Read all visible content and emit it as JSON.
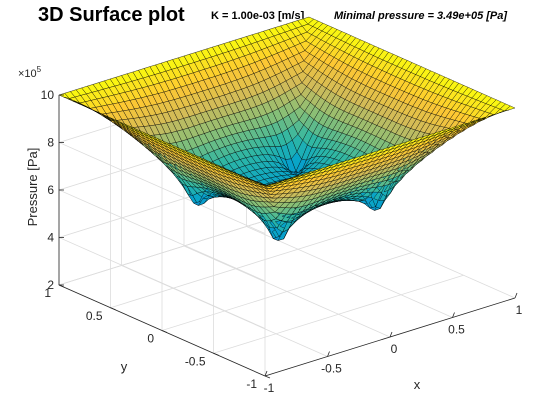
{
  "title": {
    "main": "3D Surface plot",
    "param": "K = 1.00e-03 [m/s]",
    "minimal": "Minimal pressure = 3.49e+05 [Pa]"
  },
  "chart_data": {
    "type": "surface",
    "title": "3D Surface plot",
    "xlabel": "x",
    "ylabel": "y",
    "zlabel": "Pressure [Pa]",
    "z_exponent_label": "×10",
    "z_exponent_power": "5",
    "xlim": [
      -1,
      1
    ],
    "ylim": [
      -1,
      1
    ],
    "zlim": [
      200000,
      1000000
    ],
    "x_ticks": [
      -1,
      -0.5,
      0,
      0.5,
      1
    ],
    "x_tick_labels": [
      "-1",
      "-0.5",
      "0",
      "0.5",
      "1"
    ],
    "y_ticks": [
      -1,
      -0.5,
      0,
      0.5,
      1
    ],
    "y_tick_labels": [
      "-1",
      "-0.5",
      "0",
      "0.5",
      "1"
    ],
    "z_ticks": [
      200000,
      400000,
      600000,
      800000,
      1000000
    ],
    "z_tick_labels": [
      "2",
      "4",
      "6",
      "8",
      "10"
    ],
    "boundary_pressure": 1000000,
    "minimal_pressure": 349000,
    "wells": [
      {
        "x": -0.4,
        "y": -0.4,
        "min_pressure": 349000
      },
      {
        "x": 0.4,
        "y": 0.4,
        "min_pressure": 349000
      },
      {
        "x": -0.4,
        "y": 0.4,
        "min_pressure": 349000
      },
      {
        "x": 0.4,
        "y": -0.4,
        "min_pressure": 349000
      }
    ],
    "grid": true,
    "colormap": "parula",
    "colormap_stops": [
      "#352a87",
      "#0f5cdd",
      "#1481d6",
      "#06a4ca",
      "#2eb7a4",
      "#87bf77",
      "#d1bb59",
      "#fec832",
      "#f9fb0e"
    ],
    "face_color": "#000000"
  }
}
